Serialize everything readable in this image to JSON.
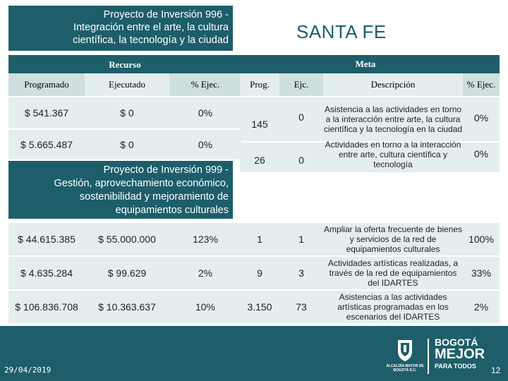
{
  "project_996": {
    "title_line1": "Proyecto de Inversión 996 -",
    "title_line2": "Integración entre el arte, la cultura",
    "title_line3": "científica, la tecnología y la ciudad"
  },
  "locality": "SANTA FE",
  "section_headers": {
    "recurso": "Recurso",
    "meta": "Meta"
  },
  "column_headers": {
    "programado": "Programado",
    "ejecutado": "Ejecutado",
    "pct_ejec_recurso": "% Ejec.",
    "prog": "Prog.",
    "ejc": "Ejc.",
    "descripcion": "Descripción",
    "pct_ejec_meta": "% Ejec."
  },
  "rows_996": [
    {
      "programado": "$ 541.367",
      "ejecutado": "$ 0",
      "pct_recurso": "0%",
      "prog": "145",
      "ejc": "0",
      "descripcion": "Asistencia a las actividades en torno a la interacción entre arte, la cultura científica y la tecnología en la ciudad",
      "pct_meta": "0%"
    },
    {
      "programado": "$ 5.665.487",
      "ejecutado": "$ 0",
      "pct_recurso": "0%",
      "prog": "26",
      "ejc": "0",
      "descripcion": "Actividades en torno a la interacción entre arte, cultura científica y tecnología",
      "pct_meta": "0%"
    }
  ],
  "project_999": {
    "title_line1": "Proyecto de Inversión 999 -",
    "title_line2": "Gestión, aprovechamiento económico,",
    "title_line3": "sostenibilidad y mejoramiento de",
    "title_line4": "equipamientos culturales"
  },
  "rows_999": [
    {
      "programado": "$ 44.615.385",
      "ejecutado": "$ 55.000.000",
      "pct_recurso": "123%",
      "prog": "1",
      "ejc": "1",
      "descripcion": "Ampliar la oferta frecuente de bienes y servicios de la red de equipamientos culturales",
      "pct_meta": "100%"
    },
    {
      "programado": "$ 4.635.284",
      "ejecutado": "$ 99.629",
      "pct_recurso": "2%",
      "prog": "9",
      "ejc": "3",
      "descripcion": "Actividades artísticas realizadas, a través de la red de equipamientos del IDARTES",
      "pct_meta": "33%"
    },
    {
      "programado": "$ 106.836.708",
      "ejecutado": "$ 10.363.637",
      "pct_recurso": "10%",
      "prog": "3.150",
      "ejc": "73",
      "descripcion": "Asistencias a las actividades artísticas programadas en los escenarios del IDARTES",
      "pct_meta": "2%"
    }
  ],
  "footer": {
    "date": "29/04/2019",
    "page_number": "12",
    "logo_city_text": "ALCALDÍA MAYOR DE BOGOTÁ D.C.",
    "logo_brand_line1": "BOGOTÁ",
    "logo_brand_line2": "MEJOR",
    "logo_brand_line3": "PARA TODOS"
  },
  "colors": {
    "accent": "#1d5e6a",
    "cell_light": "#e4eeee",
    "cell_mid": "#cfdede"
  }
}
